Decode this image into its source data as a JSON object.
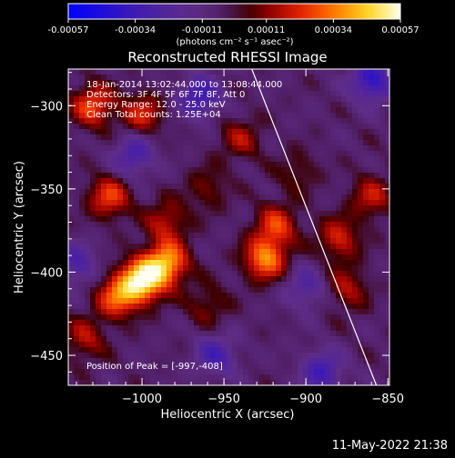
{
  "chart_data": {
    "type": "heatmap",
    "title": "Reconstructed RHESSI Image",
    "xlabel": "Heliocentric X (arcsec)",
    "ylabel": "Heliocentric Y (arcsec)",
    "xlim": [
      -1045,
      -849
    ],
    "ylim": [
      -468,
      -278
    ],
    "x_ticks": [
      -1000,
      -950,
      -900,
      -850
    ],
    "y_ticks": [
      -450,
      -400,
      -350,
      -300
    ],
    "colorbar": {
      "ticks": [
        -0.00057,
        -0.00034,
        -0.00011,
        0.00011,
        0.00034,
        0.00057
      ],
      "tick_labels": [
        "-0.00057",
        "-0.00034",
        "-0.00011",
        "0.00011",
        "0.00034",
        "0.00057"
      ],
      "units": "(photons cm⁻² s⁻¹ asec⁻²)",
      "colors": [
        "#0000ff",
        "#5a1e8c",
        "#8b0000",
        "#ff4500",
        "#ffd700",
        "#ffffff"
      ]
    },
    "annotations": [
      "18-Jan-2014 13:02:44.000 to 13:08:44.000",
      "Detectors: 3F 4F 5F 6F 7F 8F, Att 0",
      "Energy Range: 12.0 - 25.0 keV",
      "Clean     Total counts: 1.25E+04"
    ],
    "peak_label": "Position of Peak = [-997,-408]",
    "peak": [
      -997,
      -408
    ],
    "limb_line": [
      [
        -933,
        -278
      ],
      [
        -857,
        -468
      ]
    ],
    "hot_spots": [
      {
        "x": -1000,
        "y": -405,
        "value": 0.00057
      },
      {
        "x": -985,
        "y": -395,
        "value": 0.00045
      },
      {
        "x": -1015,
        "y": -415,
        "value": 0.00035
      },
      {
        "x": -925,
        "y": -392,
        "value": 0.0004
      },
      {
        "x": -918,
        "y": -372,
        "value": 0.00028
      },
      {
        "x": -1030,
        "y": -300,
        "value": 0.00032
      },
      {
        "x": -1000,
        "y": -305,
        "value": 0.00025
      },
      {
        "x": -940,
        "y": -320,
        "value": 0.00018
      },
      {
        "x": -1020,
        "y": -355,
        "value": 0.0003
      },
      {
        "x": -985,
        "y": -370,
        "value": 0.00022
      },
      {
        "x": -880,
        "y": -380,
        "value": 0.00025
      },
      {
        "x": -860,
        "y": -355,
        "value": 0.00022
      },
      {
        "x": -875,
        "y": -410,
        "value": 0.0002
      },
      {
        "x": -1035,
        "y": -440,
        "value": 0.0002
      },
      {
        "x": -905,
        "y": -340,
        "value": 0.00012
      },
      {
        "x": -960,
        "y": -420,
        "value": 0.00015
      },
      {
        "x": -960,
        "y": -350,
        "value": 0.00014
      }
    ],
    "cold_spots": [
      {
        "x": -965,
        "y": -295,
        "value": -0.0003
      },
      {
        "x": -1005,
        "y": -330,
        "value": -0.00025
      },
      {
        "x": -955,
        "y": -450,
        "value": -0.00025
      },
      {
        "x": -860,
        "y": -285,
        "value": -0.00035
      },
      {
        "x": -890,
        "y": -460,
        "value": -0.00028
      },
      {
        "x": -1040,
        "y": -395,
        "value": -0.00022
      },
      {
        "x": -900,
        "y": -410,
        "value": -0.0002
      }
    ]
  },
  "footer": {
    "timestamp": "11-May-2022 21:38"
  }
}
